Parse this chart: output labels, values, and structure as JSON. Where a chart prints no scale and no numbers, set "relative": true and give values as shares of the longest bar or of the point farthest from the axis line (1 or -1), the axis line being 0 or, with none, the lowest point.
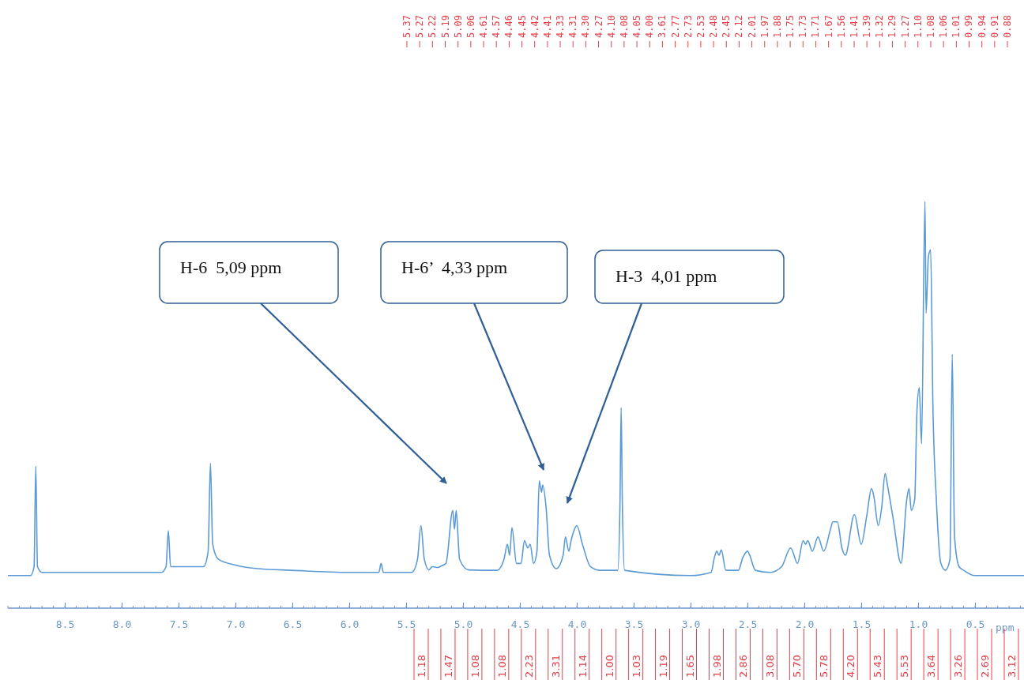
{
  "chart_data": {
    "type": "line",
    "relative": true,
    "xlabel": "ppm",
    "xlim": [
      9.0,
      0.05
    ],
    "xticks": [
      {
        "value": 8.5,
        "label": "8.5"
      },
      {
        "value": 8,
        "label": "8.0"
      },
      {
        "value": 7.5,
        "label": "7.5"
      },
      {
        "value": 7,
        "label": "7.0"
      },
      {
        "value": 6.5,
        "label": "6.5"
      },
      {
        "value": 6,
        "label": "6.0"
      },
      {
        "value": 5.5,
        "label": "5.5"
      },
      {
        "value": 5,
        "label": "5.0"
      },
      {
        "value": 4.5,
        "label": "4.5"
      },
      {
        "value": 4,
        "label": "4.0"
      },
      {
        "value": 3.5,
        "label": "3.5"
      },
      {
        "value": 3,
        "label": "3.0"
      },
      {
        "value": 2.5,
        "label": "2.5"
      },
      {
        "value": 2,
        "label": "2.0"
      },
      {
        "value": 1.5,
        "label": "1.5"
      },
      {
        "value": 1,
        "label": "1.0"
      },
      {
        "value": 0.5,
        "label": "0.5"
      }
    ],
    "marker": "none",
    "line_style": "solid",
    "series": [
      {
        "color": "#5b9bd5",
        "x": [
          9.0,
          8.8,
          8.77,
          8.755,
          8.74,
          8.7,
          7.65,
          7.61,
          7.59,
          7.57,
          7.28,
          7.24,
          7.22,
          7.2,
          7.15,
          7.0,
          6.8,
          6.5,
          6.0,
          5.74,
          5.72,
          5.7,
          5.45,
          5.4,
          5.37,
          5.34,
          5.3,
          5.27,
          5.22,
          5.19,
          5.15,
          5.09,
          5.075,
          5.06,
          5.03,
          4.95,
          4.7,
          4.64,
          4.61,
          4.59,
          4.57,
          4.53,
          4.49,
          4.46,
          4.43,
          4.41,
          4.38,
          4.35,
          4.33,
          4.31,
          4.3,
          4.27,
          4.24,
          4.18,
          4.12,
          4.1,
          4.07,
          4.05,
          4.02,
          4.0,
          3.95,
          3.88,
          3.8,
          3.64,
          3.62,
          3.61,
          3.6,
          3.58,
          3.0,
          2.82,
          2.79,
          2.77,
          2.75,
          2.73,
          2.69,
          2.58,
          2.54,
          2.53,
          2.5,
          2.48,
          2.43,
          2.3,
          2.2,
          2.12,
          2.06,
          2.01,
          1.99,
          1.97,
          1.93,
          1.88,
          1.83,
          1.77,
          1.75,
          1.71,
          1.67,
          1.64,
          1.56,
          1.5,
          1.45,
          1.41,
          1.39,
          1.35,
          1.32,
          1.29,
          1.27,
          1.22,
          1.15,
          1.1,
          1.08,
          1.06,
          1.03,
          1.01,
          0.99,
          0.97,
          0.94,
          0.93,
          0.91,
          0.89,
          0.87,
          0.84,
          0.8,
          0.76,
          0.72,
          0.7,
          0.68,
          0.64,
          0.6,
          0.5,
          0.05
        ],
        "values": [
          0.08,
          0.08,
          0.102,
          0.349,
          0.102,
          0.088,
          0.088,
          0.102,
          0.19,
          0.102,
          0.102,
          0.14,
          0.356,
          0.157,
          0.12,
          0.106,
          0.097,
          0.093,
          0.088,
          0.088,
          0.11,
          0.088,
          0.088,
          0.12,
          0.203,
          0.12,
          0.094,
          0.102,
          0.1,
          0.104,
          0.11,
          0.24,
          0.194,
          0.24,
          0.12,
          0.094,
          0.093,
          0.12,
          0.157,
          0.13,
          0.198,
          0.11,
          0.11,
          0.166,
          0.148,
          0.157,
          0.11,
          0.14,
          0.313,
          0.285,
          0.303,
          0.248,
          0.13,
          0.097,
          0.13,
          0.175,
          0.14,
          0.166,
          0.194,
          0.203,
          0.157,
          0.102,
          0.093,
          0.093,
          0.267,
          0.493,
          0.267,
          0.093,
          0.08,
          0.088,
          0.125,
          0.14,
          0.13,
          0.143,
          0.093,
          0.093,
          0.125,
          0.13,
          0.14,
          0.13,
          0.093,
          0.088,
          0.102,
          0.148,
          0.11,
          0.166,
          0.157,
          0.166,
          0.14,
          0.175,
          0.14,
          0.194,
          0.212,
          0.212,
          0.148,
          0.13,
          0.23,
          0.157,
          0.23,
          0.294,
          0.276,
          0.203,
          0.248,
          0.331,
          0.303,
          0.221,
          0.11,
          0.267,
          0.294,
          0.24,
          0.267,
          0.487,
          0.542,
          0.404,
          1.0,
          0.725,
          0.863,
          0.881,
          0.496,
          0.267,
          0.11,
          0.093,
          0.12,
          0.624,
          0.175,
          0.102,
          0.093,
          0.08,
          0.08
        ]
      }
    ],
    "annotations": [
      "H-6  5,09 ppm",
      "H-6’  4,33 ppm",
      "H-3  4,01 ppm",
      "5.37",
      "5.27",
      "5.22",
      "5.19",
      "5.09",
      "5.06",
      "4.61",
      "4.57",
      "4.46",
      "4.45",
      "4.42",
      "4.41",
      "4.33",
      "4.31",
      "4.30",
      "4.27",
      "4.10",
      "4.08",
      "4.05",
      "4.00",
      "3.61",
      "2.77",
      "2.73",
      "2.53",
      "2.48",
      "2.45",
      "2.12",
      "2.01",
      "1.97",
      "1.88",
      "1.75",
      "1.73",
      "1.71",
      "1.67",
      "1.56",
      "1.41",
      "1.39",
      "1.32",
      "1.29",
      "1.27",
      "1.10",
      "1.08",
      "1.06",
      "1.01",
      "0.99",
      "0.94",
      "0.91",
      "0.88",
      "1.18",
      "1.47",
      "1.08",
      "1.08",
      "2.23",
      "3.31",
      "1.14",
      "1.00",
      "1.03",
      "1.19",
      "1.65",
      "1.98",
      "2.86",
      "3.08",
      "5.70",
      "5.78",
      "4.20",
      "5.43",
      "5.53",
      "3.64",
      "3.26",
      "2.69",
      "3.12"
    ]
  }
}
